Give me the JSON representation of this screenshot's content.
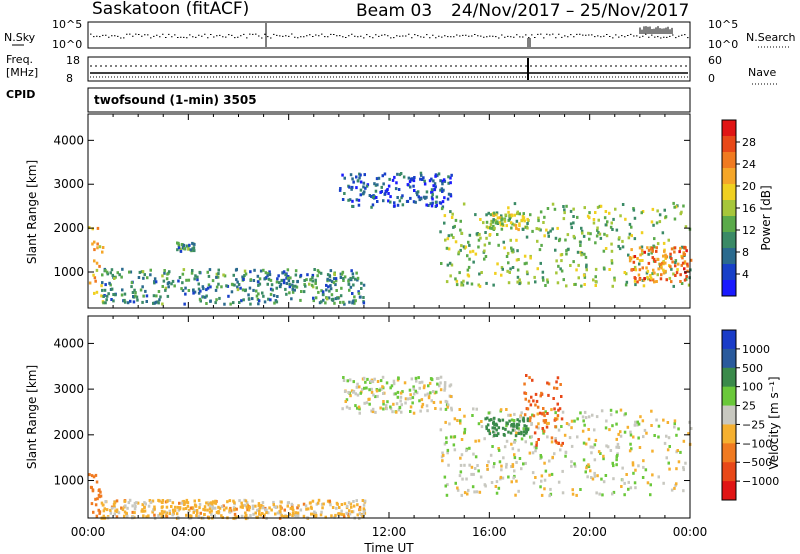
{
  "header": {
    "station": "Saskatoon (fitACF)",
    "beam": "Beam 03",
    "dates": "24/Nov/2017 – 25/Nov/2017"
  },
  "noise_panel": {
    "left_label": "N.Sky",
    "right_label": "N.Search",
    "left_ticks": [
      "10^5",
      "10^0"
    ],
    "right_ticks": [
      "10^5",
      "10^0"
    ]
  },
  "freq_panel": {
    "left_label_1": "Freq.",
    "left_label_2": "[MHz]",
    "left_ticks": [
      "18",
      "8"
    ],
    "right_ticks": [
      "60",
      "0"
    ],
    "right_label": "Nave",
    "cpid_label": "CPID"
  },
  "mode_label": "twofsound (1-min) 3505",
  "panels": {
    "power": {
      "ylabel": "Slant Range [km]",
      "cbar_label": "Power [dB]"
    },
    "velocity": {
      "ylabel": "Slant Range [km]",
      "cbar_label": "Velocity [m s⁻¹]"
    }
  },
  "x_axis": {
    "label": "Time UT",
    "ticks": [
      "00:00",
      "04:00",
      "08:00",
      "12:00",
      "16:00",
      "20:00",
      "00:00"
    ]
  },
  "chart_data": [
    {
      "type": "heatmap",
      "title": "Power",
      "xlabel": "Time UT",
      "ylabel": "Slant Range [km]",
      "xlim": [
        0,
        24
      ],
      "ylim": [
        180,
        4600
      ],
      "yticks": [
        1000,
        2000,
        3000,
        4000
      ],
      "colorbar": {
        "label": "Power [dB]",
        "ticks": [
          "4",
          "8",
          "12",
          "16",
          "20",
          "24",
          "28"
        ],
        "colors": [
          "#1a1aff",
          "#1840c8",
          "#2a6a8e",
          "#3a8a66",
          "#5aaa4a",
          "#a6c63a",
          "#f0d020",
          "#f5a628",
          "#f07a20",
          "#e84818",
          "#e01414"
        ]
      },
      "features": [
        {
          "time": [
            0.0,
            0.6
          ],
          "range": [
            250,
            2200
          ],
          "value_db": 20
        },
        {
          "time": [
            0.5,
            11.0
          ],
          "range": [
            300,
            1100
          ],
          "value_db": 10
        },
        {
          "time": [
            3.5,
            4.2
          ],
          "range": [
            1500,
            1700
          ],
          "value_db": 10
        },
        {
          "time": [
            10.0,
            14.5
          ],
          "range": [
            2500,
            3300
          ],
          "value_db": 6
        },
        {
          "time": [
            14.0,
            24.0
          ],
          "range": [
            700,
            2600
          ],
          "value_db": 14
        },
        {
          "time": [
            15.8,
            17.5
          ],
          "range": [
            2000,
            2400
          ],
          "value_db": 16
        },
        {
          "time": [
            21.5,
            24.0
          ],
          "range": [
            800,
            1600
          ],
          "value_db": 24
        }
      ]
    },
    {
      "type": "heatmap",
      "title": "Velocity",
      "xlabel": "Time UT",
      "ylabel": "Slant Range [km]",
      "xlim": [
        0,
        24
      ],
      "ylim": [
        180,
        4600
      ],
      "yticks": [
        1000,
        2000,
        3000,
        4000
      ],
      "colorbar": {
        "label": "Velocity [m s⁻¹]",
        "ticks": [
          "1000",
          "500",
          "100",
          "25",
          "−25",
          "−100",
          "−500",
          "−1000"
        ],
        "colors": [
          "#1a3cc8",
          "#2a5a9c",
          "#3a8a4a",
          "#6ac83a",
          "#c8c8c0",
          "#f5b030",
          "#f07a20",
          "#e84818",
          "#e01414"
        ]
      },
      "features": [
        {
          "time": [
            0.0,
            0.6
          ],
          "range": [
            250,
            1200
          ],
          "value_ms": -400
        },
        {
          "time": [
            0.5,
            11.0
          ],
          "range": [
            200,
            600
          ],
          "value_ms": -50
        },
        {
          "time": [
            10.0,
            14.5
          ],
          "range": [
            2500,
            3300
          ],
          "value_ms": 0
        },
        {
          "time": [
            14.0,
            24.0
          ],
          "range": [
            700,
            2600
          ],
          "value_ms": 0
        },
        {
          "time": [
            15.8,
            17.5
          ],
          "range": [
            2000,
            2400
          ],
          "value_ms": 300
        },
        {
          "time": [
            17.3,
            19.0
          ],
          "range": [
            1800,
            3400
          ],
          "value_ms": -500
        }
      ]
    }
  ]
}
